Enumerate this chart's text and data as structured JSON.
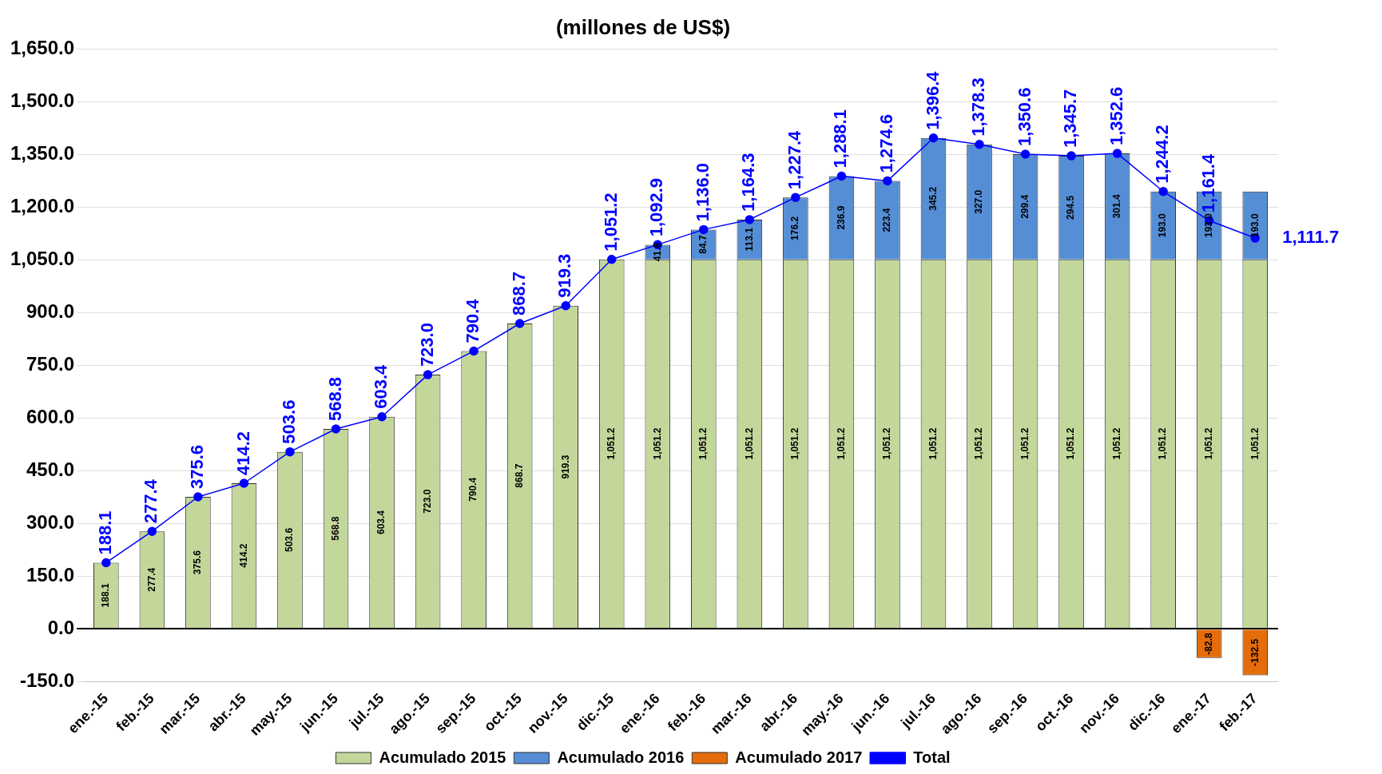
{
  "chart_data": {
    "type": "bar",
    "title": "(millones de US$)",
    "stacked": true,
    "grid": "y",
    "legend": "bottom",
    "marker": "circle",
    "categories": [
      "ene.-15",
      "feb.-15",
      "mar.-15",
      "abr.-15",
      "may.-15",
      "jun.-15",
      "jul.-15",
      "ago.-15",
      "sep.-15",
      "oct.-15",
      "nov.-15",
      "dic.-15",
      "ene.-16",
      "feb.-16",
      "mar.-16",
      "abr.-16",
      "may.-16",
      "jun.-16",
      "jul.-16",
      "ago.-16",
      "sep.-16",
      "oct.-16",
      "nov.-16",
      "dic.-16",
      "ene.-17",
      "feb.-17"
    ],
    "ylim": [
      -150,
      1650
    ],
    "yticks": [
      {
        "value": -150,
        "label": "-150.0"
      },
      {
        "value": 0,
        "label": "0.0"
      },
      {
        "value": 150,
        "label": "150.0"
      },
      {
        "value": 300,
        "label": "300.0"
      },
      {
        "value": 450,
        "label": "450.0"
      },
      {
        "value": 600,
        "label": "600.0"
      },
      {
        "value": 750,
        "label": "750.0"
      },
      {
        "value": 900,
        "label": "900.0"
      },
      {
        "value": 1050,
        "label": "1,050.0"
      },
      {
        "value": 1200,
        "label": "1,200.0"
      },
      {
        "value": 1350,
        "label": "1,350.0"
      },
      {
        "value": 1500,
        "label": "1,500.0"
      },
      {
        "value": 1650,
        "label": "1,650.0"
      }
    ],
    "series": [
      {
        "name": "Acumulado 2015",
        "color": "#c4d79b",
        "values": [
          188.1,
          277.4,
          375.6,
          414.2,
          503.6,
          568.8,
          603.4,
          723.0,
          790.4,
          868.7,
          919.3,
          1051.2,
          1051.2,
          1051.2,
          1051.2,
          1051.2,
          1051.2,
          1051.2,
          1051.2,
          1051.2,
          1051.2,
          1051.2,
          1051.2,
          1051.2,
          1051.2,
          1051.2
        ],
        "value_labels": [
          "188.1",
          "277.4",
          "375.6",
          "414.2",
          "503.6",
          "568.8",
          "603.4",
          "723.0",
          "790.4",
          "868.7",
          "919.3",
          "1,051.2",
          "1,051.2",
          "1,051.2",
          "1,051.2",
          "1,051.2",
          "1,051.2",
          "1,051.2",
          "1,051.2",
          "1,051.2",
          "1,051.2",
          "1,051.2",
          "1,051.2",
          "1,051.2",
          "1,051.2",
          "1,051.2"
        ]
      },
      {
        "name": "Acumulado 2016",
        "color": "#558ed5",
        "values": [
          null,
          null,
          null,
          null,
          null,
          null,
          null,
          null,
          null,
          null,
          null,
          null,
          41.6,
          84.7,
          113.1,
          176.2,
          236.9,
          223.4,
          345.2,
          327.0,
          299.4,
          294.5,
          301.4,
          193.0,
          193.0,
          193.0
        ],
        "value_labels": [
          null,
          null,
          null,
          null,
          null,
          null,
          null,
          null,
          null,
          null,
          null,
          null,
          "41.6",
          "84.7",
          "113.1",
          "176.2",
          "236.9",
          "223.4",
          "345.2",
          "327.0",
          "299.4",
          "294.5",
          "301.4",
          "193.0",
          "193.0",
          "193.0"
        ]
      },
      {
        "name": "Acumulado 2017",
        "color": "#e46c0a",
        "values": [
          null,
          null,
          null,
          null,
          null,
          null,
          null,
          null,
          null,
          null,
          null,
          null,
          null,
          null,
          null,
          null,
          null,
          null,
          null,
          null,
          null,
          null,
          null,
          null,
          -82.8,
          -132.5
        ],
        "value_labels": [
          null,
          null,
          null,
          null,
          null,
          null,
          null,
          null,
          null,
          null,
          null,
          null,
          null,
          null,
          null,
          null,
          null,
          null,
          null,
          null,
          null,
          null,
          null,
          null,
          "-82.8",
          "-132.5"
        ]
      },
      {
        "name": "Total",
        "type": "line",
        "color": "#0000ff",
        "values": [
          188.1,
          277.4,
          375.6,
          414.2,
          503.6,
          568.8,
          603.4,
          723.0,
          790.4,
          868.7,
          919.3,
          1051.2,
          1092.9,
          1136.0,
          1164.3,
          1227.4,
          1288.1,
          1274.6,
          1396.4,
          1378.3,
          1350.6,
          1345.7,
          1352.6,
          1244.2,
          1161.4,
          1111.7
        ],
        "value_labels": [
          "188.1",
          "277.4",
          "375.6",
          "414.2",
          "503.6",
          "568.8",
          "603.4",
          "723.0",
          "790.4",
          "868.7",
          "919.3",
          "1,051.2",
          "1,092.9",
          "1,136.0",
          "1,164.3",
          "1,227.4",
          "1,288.1",
          "1,274.6",
          "1,396.4",
          "1,378.3",
          "1,350.6",
          "1,345.7",
          "1,352.6",
          "1,244.2",
          "1,161.4",
          "1,111.7"
        ]
      }
    ]
  }
}
